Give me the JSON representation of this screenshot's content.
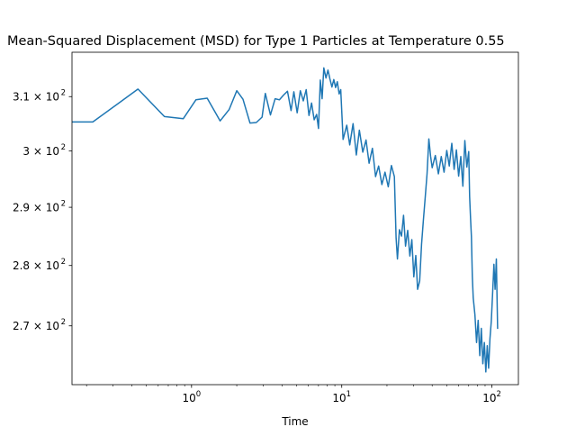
{
  "chart_data": {
    "type": "line",
    "title": "Mean-Squared Displacement (MSD) for Type 1 Particles at Temperature 0.55",
    "xlabel": "Time",
    "ylabel": "",
    "xscale": "log",
    "yscale": "log",
    "xlim": [
      0.16,
      150
    ],
    "ylim": [
      260.6,
      318.4
    ],
    "grid": false,
    "legend": "none",
    "color": "#1f77b4",
    "xticks": [
      {
        "value": 1,
        "label": "10",
        "exp": "0"
      },
      {
        "value": 10,
        "label": "10",
        "exp": "1"
      },
      {
        "value": 100,
        "label": "10",
        "exp": "2"
      }
    ],
    "yticks": [
      {
        "value": 270,
        "label": "2.7 × 10",
        "exp": "2"
      },
      {
        "value": 280,
        "label": "2.8 × 10",
        "exp": "2"
      },
      {
        "value": 290,
        "label": "2.9 × 10",
        "exp": "2"
      },
      {
        "value": 300,
        "label": "3 × 10",
        "exp": "2"
      },
      {
        "value": 310,
        "label": "3.1 × 10",
        "exp": "2"
      }
    ],
    "series": [
      {
        "values": [
          [
            0.15,
            305.3
          ],
          [
            0.22,
            305.3
          ],
          [
            0.44,
            311.4
          ],
          [
            0.66,
            306.3
          ],
          [
            0.88,
            305.9
          ],
          [
            1.07,
            309.4
          ],
          [
            1.27,
            309.7
          ],
          [
            1.55,
            305.5
          ],
          [
            1.78,
            307.6
          ],
          [
            2.0,
            311.1
          ],
          [
            2.2,
            309.5
          ],
          [
            2.45,
            305.1
          ],
          [
            2.7,
            305.2
          ],
          [
            2.95,
            306.2
          ],
          [
            3.1,
            310.6
          ],
          [
            3.35,
            306.6
          ],
          [
            3.6,
            309.6
          ],
          [
            3.85,
            309.4
          ],
          [
            4.1,
            310.3
          ],
          [
            4.35,
            311.0
          ],
          [
            4.6,
            307.4
          ],
          [
            4.8,
            310.9
          ],
          [
            5.05,
            307.0
          ],
          [
            5.3,
            311.1
          ],
          [
            5.55,
            309.2
          ],
          [
            5.8,
            311.3
          ],
          [
            6.05,
            306.5
          ],
          [
            6.3,
            308.8
          ],
          [
            6.55,
            305.7
          ],
          [
            6.8,
            306.7
          ],
          [
            7.0,
            304.1
          ],
          [
            7.2,
            313.1
          ],
          [
            7.4,
            309.6
          ],
          [
            7.6,
            315.4
          ],
          [
            7.85,
            313.5
          ],
          [
            8.1,
            315.0
          ],
          [
            8.35,
            313.3
          ],
          [
            8.6,
            311.8
          ],
          [
            8.85,
            313.2
          ],
          [
            9.1,
            311.7
          ],
          [
            9.35,
            312.8
          ],
          [
            9.6,
            310.5
          ],
          [
            9.85,
            311.3
          ],
          [
            10.2,
            302.1
          ],
          [
            10.8,
            304.7
          ],
          [
            11.3,
            301.1
          ],
          [
            11.9,
            305.0
          ],
          [
            12.5,
            299.3
          ],
          [
            13.1,
            303.8
          ],
          [
            13.8,
            299.8
          ],
          [
            14.5,
            302.0
          ],
          [
            15.2,
            297.8
          ],
          [
            16.0,
            300.5
          ],
          [
            16.8,
            295.4
          ],
          [
            17.6,
            297.3
          ],
          [
            18.5,
            294.0
          ],
          [
            19.4,
            296.2
          ],
          [
            20.4,
            293.6
          ],
          [
            21.4,
            297.4
          ],
          [
            22.4,
            295.4
          ],
          [
            23.0,
            284.7
          ],
          [
            23.5,
            281.1
          ],
          [
            24.2,
            286.1
          ],
          [
            25.0,
            285.0
          ],
          [
            25.8,
            288.6
          ],
          [
            26.6,
            283.3
          ],
          [
            27.5,
            286.0
          ],
          [
            28.4,
            281.6
          ],
          [
            29.3,
            284.4
          ],
          [
            30.2,
            278.1
          ],
          [
            31.1,
            281.7
          ],
          [
            32.0,
            276.0
          ],
          [
            33.0,
            277.4
          ],
          [
            34.0,
            283.6
          ],
          [
            35.0,
            287.9
          ],
          [
            36.0,
            292.0
          ],
          [
            37.0,
            295.9
          ],
          [
            38.0,
            302.2
          ],
          [
            39.0,
            299.1
          ],
          [
            40.0,
            297.0
          ],
          [
            42.0,
            299.2
          ],
          [
            44.0,
            295.9
          ],
          [
            46.0,
            299.0
          ],
          [
            48.0,
            296.2
          ],
          [
            50.0,
            300.1
          ],
          [
            52.0,
            297.3
          ],
          [
            54.0,
            301.4
          ],
          [
            56.0,
            296.7
          ],
          [
            58.0,
            300.2
          ],
          [
            60.0,
            295.5
          ],
          [
            62.0,
            299.0
          ],
          [
            64.0,
            293.7
          ],
          [
            66.0,
            301.9
          ],
          [
            68.0,
            297.1
          ],
          [
            70.0,
            299.9
          ],
          [
            71.0,
            291.9
          ],
          [
            72.0,
            288.2
          ],
          [
            73.0,
            284.9
          ],
          [
            74.0,
            278.2
          ],
          [
            75.0,
            274.6
          ],
          [
            77.0,
            271.8
          ],
          [
            79.0,
            267.3
          ],
          [
            81.0,
            270.9
          ],
          [
            83.0,
            265.2
          ],
          [
            85.0,
            269.6
          ],
          [
            87.0,
            263.9
          ],
          [
            89.0,
            267.3
          ],
          [
            91.0,
            262.6
          ],
          [
            93.0,
            266.8
          ],
          [
            95.0,
            263.2
          ],
          [
            97.0,
            267.9
          ],
          [
            99.0,
            270.8
          ],
          [
            101.0,
            275.2
          ],
          [
            103.0,
            280.2
          ],
          [
            105.0,
            276.0
          ],
          [
            107.0,
            281.1
          ],
          [
            109.0,
            269.5
          ]
        ]
      }
    ]
  }
}
